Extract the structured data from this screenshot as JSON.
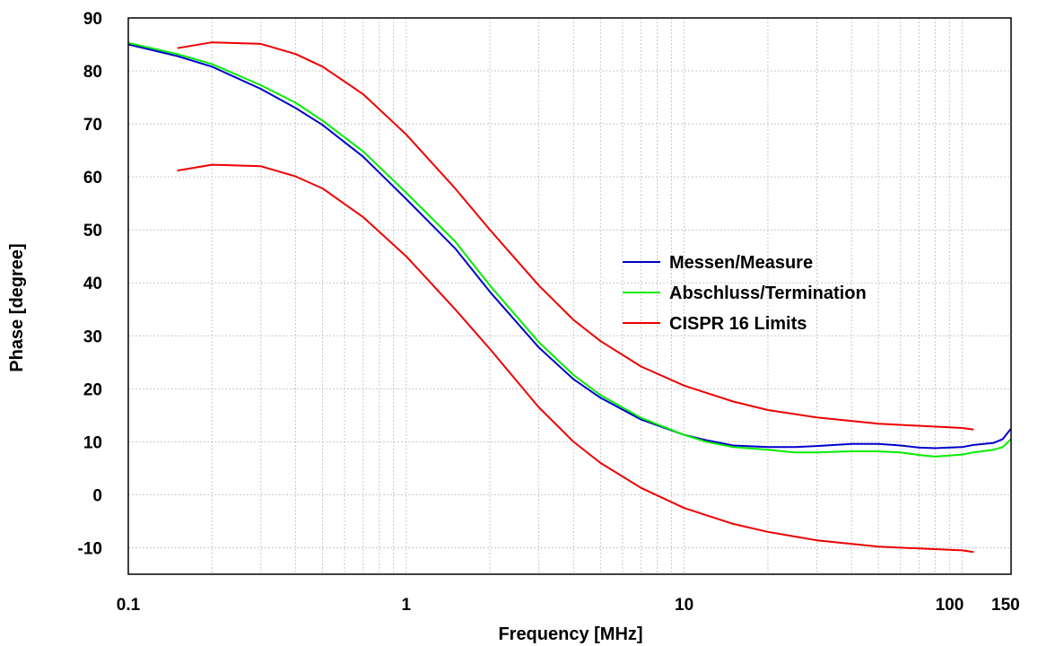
{
  "chart_data": {
    "type": "line",
    "title": "",
    "xlabel": "Frequency [MHz]",
    "ylabel": "Phase [degree]",
    "x_scale": "log",
    "xlim": [
      0.1,
      150
    ],
    "ylim": [
      -15,
      90
    ],
    "grid": true,
    "legend_position": "center-right",
    "x_ticks": [
      {
        "value": 0.1,
        "label": "0.1"
      },
      {
        "value": 1,
        "label": "1"
      },
      {
        "value": 10,
        "label": "10"
      },
      {
        "value": 100,
        "label": "100"
      },
      {
        "value": 150,
        "label": "150"
      }
    ],
    "y_ticks": [
      {
        "value": 90,
        "label": "90"
      },
      {
        "value": 80,
        "label": "80"
      },
      {
        "value": 70,
        "label": "70"
      },
      {
        "value": 60,
        "label": "60"
      },
      {
        "value": 50,
        "label": "50"
      },
      {
        "value": 40,
        "label": "40"
      },
      {
        "value": 30,
        "label": "30"
      },
      {
        "value": 20,
        "label": "20"
      },
      {
        "value": 10,
        "label": "10"
      },
      {
        "value": 0,
        "label": "0"
      },
      {
        "value": -10,
        "label": "-10"
      }
    ],
    "series": [
      {
        "name": "Messen/Measure",
        "color": "#0000cc",
        "in_legend": true,
        "points": [
          [
            0.1,
            85.0
          ],
          [
            0.15,
            82.8
          ],
          [
            0.2,
            80.8
          ],
          [
            0.3,
            76.6
          ],
          [
            0.4,
            73.0
          ],
          [
            0.5,
            69.8
          ],
          [
            0.7,
            63.8
          ],
          [
            1.0,
            55.8
          ],
          [
            1.5,
            46.5
          ],
          [
            2.0,
            38.3
          ],
          [
            3.0,
            27.8
          ],
          [
            4.0,
            21.8
          ],
          [
            5.0,
            18.3
          ],
          [
            7.0,
            14.2
          ],
          [
            10.0,
            11.3
          ],
          [
            12.0,
            10.3
          ],
          [
            15.0,
            9.3
          ],
          [
            20.0,
            9.0
          ],
          [
            25.0,
            9.0
          ],
          [
            30.0,
            9.2
          ],
          [
            40.0,
            9.6
          ],
          [
            50.0,
            9.6
          ],
          [
            60.0,
            9.3
          ],
          [
            70.0,
            8.9
          ],
          [
            80.0,
            8.8
          ],
          [
            100.0,
            9.0
          ],
          [
            110.0,
            9.4
          ],
          [
            130.0,
            9.8
          ],
          [
            140.0,
            10.5
          ],
          [
            150.0,
            12.5
          ]
        ]
      },
      {
        "name": "Abschluss/Termination",
        "color": "#00ee00",
        "in_legend": true,
        "points": [
          [
            0.1,
            85.3
          ],
          [
            0.15,
            83.2
          ],
          [
            0.2,
            81.3
          ],
          [
            0.3,
            77.3
          ],
          [
            0.4,
            74.0
          ],
          [
            0.5,
            70.6
          ],
          [
            0.7,
            64.8
          ],
          [
            1.0,
            57.0
          ],
          [
            1.5,
            47.8
          ],
          [
            2.0,
            39.5
          ],
          [
            3.0,
            28.8
          ],
          [
            4.0,
            22.6
          ],
          [
            5.0,
            18.8
          ],
          [
            7.0,
            14.5
          ],
          [
            10.0,
            11.3
          ],
          [
            12.0,
            10.0
          ],
          [
            15.0,
            9.0
          ],
          [
            20.0,
            8.5
          ],
          [
            25.0,
            8.0
          ],
          [
            30.0,
            8.0
          ],
          [
            40.0,
            8.2
          ],
          [
            50.0,
            8.2
          ],
          [
            60.0,
            8.0
          ],
          [
            70.0,
            7.5
          ],
          [
            80.0,
            7.2
          ],
          [
            100.0,
            7.6
          ],
          [
            110.0,
            8.0
          ],
          [
            130.0,
            8.5
          ],
          [
            140.0,
            9.0
          ],
          [
            150.0,
            10.5
          ]
        ]
      },
      {
        "name": "CISPR 16 Limits",
        "color": "#ee0000",
        "in_legend": true,
        "points": [
          [
            0.15,
            84.3
          ],
          [
            0.2,
            85.4
          ],
          [
            0.3,
            85.1
          ],
          [
            0.4,
            83.2
          ],
          [
            0.5,
            80.8
          ],
          [
            0.7,
            75.6
          ],
          [
            1.0,
            68.0
          ],
          [
            1.5,
            57.8
          ],
          [
            2.0,
            50.0
          ],
          [
            3.0,
            39.5
          ],
          [
            4.0,
            33.0
          ],
          [
            5.0,
            29.0
          ],
          [
            7.0,
            24.2
          ],
          [
            10.0,
            20.6
          ],
          [
            15.0,
            17.6
          ],
          [
            20.0,
            16.0
          ],
          [
            30.0,
            14.6
          ],
          [
            50.0,
            13.4
          ],
          [
            100.0,
            12.6
          ],
          [
            110.0,
            12.3
          ]
        ]
      },
      {
        "name": "CISPR 16 Limits",
        "color": "#ee0000",
        "in_legend": false,
        "points": [
          [
            0.15,
            61.2
          ],
          [
            0.2,
            62.3
          ],
          [
            0.3,
            62.0
          ],
          [
            0.4,
            60.1
          ],
          [
            0.5,
            57.8
          ],
          [
            0.7,
            52.4
          ],
          [
            1.0,
            45.0
          ],
          [
            1.5,
            35.0
          ],
          [
            2.0,
            27.5
          ],
          [
            3.0,
            16.5
          ],
          [
            4.0,
            10.0
          ],
          [
            5.0,
            6.0
          ],
          [
            7.0,
            1.3
          ],
          [
            10.0,
            -2.5
          ],
          [
            15.0,
            -5.5
          ],
          [
            20.0,
            -7.0
          ],
          [
            30.0,
            -8.6
          ],
          [
            50.0,
            -9.8
          ],
          [
            100.0,
            -10.5
          ],
          [
            110.0,
            -10.8
          ]
        ]
      }
    ]
  }
}
